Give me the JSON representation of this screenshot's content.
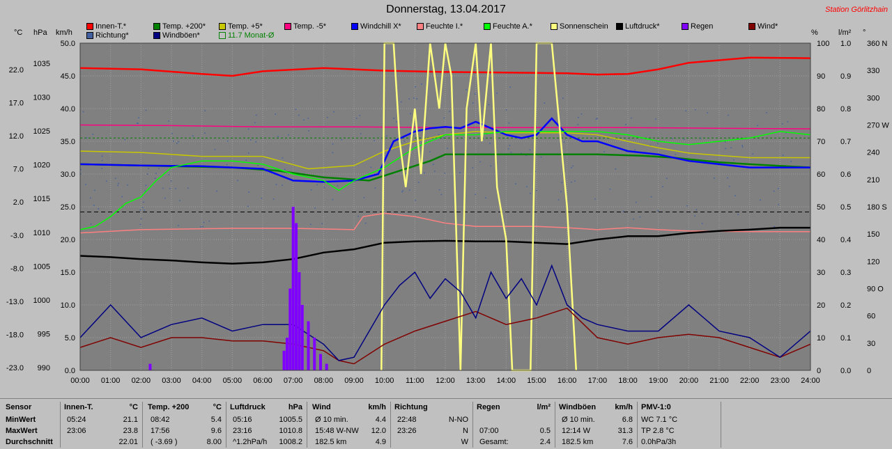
{
  "title": "Donnerstag, 13.04.2017",
  "station": "Station Görlitzhain",
  "legend": [
    {
      "label": "Innen-T.*",
      "color": "#ff0000"
    },
    {
      "label": "Temp. +200*",
      "color": "#008000"
    },
    {
      "label": "Temp. +5*",
      "color": "#c8c800"
    },
    {
      "label": "Temp. -5*",
      "color": "#ff0080"
    },
    {
      "label": "Windchill X*",
      "color": "#0000ff"
    },
    {
      "label": "Feuchte I.*",
      "color": "#ff8080"
    },
    {
      "label": "Feuchte A.*",
      "color": "#00ff00"
    },
    {
      "label": "Sonnenschein",
      "color": "#ffff80"
    },
    {
      "label": "Luftdruck*",
      "color": "#000000"
    },
    {
      "label": "Regen",
      "color": "#8000ff"
    },
    {
      "label": "Wind*",
      "color": "#800000"
    },
    {
      "label": "Richtung*",
      "color": "#4060a0"
    },
    {
      "label": "Windböen*",
      "color": "#000080"
    },
    {
      "label": "11.7 Monat-Ø",
      "color": "#008000"
    }
  ],
  "units_left": [
    "°C",
    "hPa",
    "km/h"
  ],
  "units_right": [
    "%",
    "l/m²",
    "°"
  ],
  "axes": {
    "celsius": [
      "22.0",
      "17.0",
      "12.0",
      "7.0",
      "2.0",
      "-3.0",
      "-8.0",
      "-13.0",
      "-18.0",
      "-23.0"
    ],
    "hpa": [
      "1035",
      "1030",
      "1025",
      "1020",
      "1015",
      "1010",
      "1005",
      "1000",
      "995",
      "990"
    ],
    "kmh": [
      "50.0",
      "45.0",
      "40.0",
      "35.0",
      "30.0",
      "25.0",
      "20.0",
      "15.0",
      "10.0",
      "5.0",
      "0.0"
    ],
    "percent": [
      "100",
      "90",
      "80",
      "70",
      "60",
      "50",
      "40",
      "30",
      "20",
      "10",
      "0"
    ],
    "rain": [
      "1.0",
      "0.9",
      "0.8",
      "0.7",
      "0.6",
      "0.5",
      "0.4",
      "0.3",
      "0.2",
      "0.1",
      "0.0"
    ],
    "degree": [
      "360 N",
      "330",
      "300",
      "270 W",
      "240",
      "210",
      "180 S",
      "150",
      "120",
      "90 O",
      "60",
      "30",
      "0"
    ],
    "time": [
      "00:00",
      "01:00",
      "02:00",
      "03:00",
      "04:00",
      "05:00",
      "06:00",
      "07:00",
      "08:00",
      "09:00",
      "10:00",
      "11:00",
      "12:00",
      "13:00",
      "14:00",
      "15:00",
      "16:00",
      "17:00",
      "18:00",
      "19:00",
      "20:00",
      "21:00",
      "22:00",
      "23:00",
      "24:00"
    ]
  },
  "chart_data": {
    "type": "line",
    "title": "Donnerstag, 13.04.2017",
    "x_unit": "hours",
    "ylim_kmh": [
      0,
      50
    ],
    "series": [
      {
        "name": "Innen-T.*",
        "color": "#ff0000",
        "axis": "kmh",
        "x": [
          0,
          2,
          4,
          5,
          6,
          8,
          10,
          12,
          14,
          16,
          17,
          18,
          19,
          20,
          22,
          24
        ],
        "y": [
          46.2,
          46.0,
          45.3,
          45.0,
          45.7,
          46.2,
          45.8,
          45.6,
          45.5,
          45.4,
          45.2,
          45.3,
          46.0,
          47.0,
          47.8,
          47.7
        ]
      },
      {
        "name": "Temp. +200*",
        "color": "#008000",
        "axis": "kmh",
        "x": [
          0,
          3,
          5,
          6.5,
          8,
          9.5,
          10.5,
          11.5,
          12,
          14,
          16,
          17,
          18.5,
          19.5,
          21,
          22,
          24
        ],
        "y": [
          31.5,
          31.2,
          31.0,
          30.5,
          29.5,
          29.0,
          30.5,
          32.0,
          33.0,
          33.0,
          33.0,
          33.0,
          32.8,
          32.5,
          31.8,
          31.5,
          31.0
        ]
      },
      {
        "name": "Temp. +5*",
        "color": "#c8c800",
        "axis": "kmh",
        "x": [
          0,
          2,
          4,
          6,
          7.5,
          9,
          10,
          11,
          12,
          13,
          14,
          16,
          17,
          18,
          19,
          20,
          22,
          24
        ],
        "y": [
          33.5,
          33.3,
          32.7,
          32.7,
          30.8,
          31.3,
          33.5,
          35.0,
          36.0,
          36.5,
          36.3,
          36.3,
          36.0,
          35.0,
          34.0,
          33.2,
          32.5,
          32.5
        ]
      },
      {
        "name": "Temp. -5*",
        "color": "#ff0080",
        "axis": "kmh",
        "x": [
          0,
          3,
          6,
          9,
          12,
          15,
          18,
          21,
          24
        ],
        "y": [
          37.5,
          37.4,
          37.2,
          37.2,
          37.1,
          37.1,
          37.1,
          37.0,
          36.9
        ]
      },
      {
        "name": "Windchill X*",
        "color": "#0000ff",
        "axis": "kmh",
        "x": [
          0,
          2,
          4,
          6,
          7,
          8,
          9,
          9.8,
          10.3,
          11,
          11.5,
          12,
          12.5,
          13,
          13.5,
          14,
          14.5,
          15,
          15.5,
          16,
          16.5,
          17,
          18,
          19,
          20,
          21,
          22,
          23,
          24
        ],
        "y": [
          31.5,
          31.3,
          31.2,
          30.8,
          29.0,
          28.8,
          29.0,
          30.0,
          35.0,
          36.5,
          37.0,
          37.2,
          37.0,
          38.0,
          37.0,
          36.0,
          35.5,
          36.0,
          38.5,
          36.0,
          35.0,
          35.0,
          33.5,
          33.0,
          32.0,
          31.5,
          31.0,
          31.0,
          31.0
        ]
      },
      {
        "name": "Feuchte I.*",
        "color": "#ff8080",
        "axis": "kmh",
        "x": [
          0,
          2,
          5,
          7,
          9,
          9.3,
          10,
          11,
          12,
          13,
          15,
          16,
          17,
          18,
          19,
          20,
          22,
          24
        ],
        "y": [
          21.0,
          21.5,
          21.7,
          21.7,
          21.5,
          23.5,
          24.0,
          23.5,
          22.5,
          22.0,
          22.0,
          21.8,
          21.5,
          21.8,
          21.5,
          21.3,
          21.2,
          21.2
        ]
      },
      {
        "name": "Feuchte A.*",
        "color": "#00ff00",
        "axis": "kmh",
        "x": [
          0,
          0.5,
          1,
          1.5,
          2,
          2.5,
          3,
          4,
          5,
          6,
          7,
          8,
          8.5,
          9,
          10,
          11,
          12,
          13,
          14,
          15,
          16,
          17,
          18,
          19,
          20,
          21,
          22,
          23,
          24
        ],
        "y": [
          21.5,
          22,
          23.5,
          25.5,
          26.5,
          29,
          31,
          32,
          32,
          31.5,
          30.0,
          29.0,
          27.5,
          29.0,
          31.0,
          34.0,
          36.0,
          36.0,
          36.5,
          36.5,
          36.5,
          36.5,
          36.0,
          35.0,
          34.5,
          35.0,
          35.5,
          36.5,
          36.0
        ]
      },
      {
        "name": "Luftdruck*",
        "color": "#000000",
        "axis": "kmh",
        "x": [
          0,
          1,
          2,
          3,
          4,
          5,
          6,
          7,
          8,
          9,
          10,
          11,
          12,
          13,
          14,
          15,
          16,
          17,
          18,
          19,
          20,
          21,
          22,
          23,
          24
        ],
        "y": [
          17.5,
          17.3,
          17.0,
          16.8,
          16.5,
          16.3,
          16.5,
          17.0,
          18.0,
          18.5,
          19.5,
          19.7,
          19.8,
          19.7,
          19.7,
          19.5,
          19.3,
          20.0,
          20.5,
          20.5,
          21.0,
          21.3,
          21.5,
          21.8,
          21.8
        ]
      },
      {
        "name": "Sonnenschein",
        "color": "#ffff80",
        "axis": "kmh",
        "x": [
          9.9,
          10,
          10.3,
          10.5,
          10.7,
          11,
          11.2,
          11.5,
          11.8,
          12,
          12.2,
          12.4,
          12.5,
          12.7,
          13,
          13.2,
          13.5,
          13.7,
          14,
          14.2,
          14.5,
          14.8,
          15,
          15.5,
          15.8,
          16,
          16.3
        ],
        "y": [
          0,
          50,
          50,
          35,
          28,
          40,
          30,
          50,
          40,
          50,
          45,
          15,
          0,
          40,
          50,
          35,
          50,
          28,
          20,
          0,
          0,
          0,
          50,
          50,
          35,
          25,
          0
        ]
      },
      {
        "name": "Wind*",
        "color": "#800000",
        "axis": "kmh",
        "x": [
          0,
          1,
          2,
          3,
          4,
          5,
          6,
          7,
          8,
          8.5,
          9,
          10,
          11,
          12,
          13,
          14,
          15,
          16,
          17,
          18,
          19,
          20,
          21,
          22,
          23,
          24
        ],
        "y": [
          3.5,
          5,
          3.5,
          5,
          5,
          4.5,
          4.5,
          4,
          3,
          1.5,
          1,
          4,
          6,
          7.5,
          9,
          7,
          8,
          9.5,
          5,
          4,
          5,
          5.5,
          5,
          3.5,
          2,
          4
        ]
      },
      {
        "name": "Windböen*",
        "color": "#000080",
        "axis": "kmh",
        "x": [
          0,
          1,
          2,
          3,
          4,
          5,
          6,
          7,
          8,
          8.5,
          9,
          10,
          10.5,
          11,
          11.5,
          12,
          12.5,
          13,
          13.5,
          14,
          14.5,
          15,
          15.5,
          16,
          16.5,
          17,
          18,
          19,
          20,
          21,
          22,
          23,
          24
        ],
        "y": [
          5,
          10,
          5,
          7,
          8,
          6,
          7,
          7,
          4,
          1.5,
          2,
          10,
          13,
          15,
          11,
          14,
          12,
          8,
          15,
          11,
          14,
          10,
          16,
          10,
          8,
          7,
          6,
          6,
          10,
          6,
          5,
          2,
          6
        ]
      },
      {
        "name": "Regen",
        "color": "#8000ff",
        "axis": "rain",
        "x": [
          2.3,
          6.7,
          6.8,
          6.9,
          7.0,
          7.1,
          7.2,
          7.3,
          7.5,
          7.7,
          7.9,
          8.1
        ],
        "y": [
          0.02,
          0.06,
          0.1,
          0.25,
          0.5,
          0.45,
          0.3,
          0.2,
          0.15,
          0.1,
          0.05,
          0.02
        ]
      }
    ]
  },
  "stats": {
    "col1": {
      "header": "Sensor",
      "rows": [
        "MinWert",
        "MaxWert",
        "Durchschnitt"
      ]
    },
    "col2": {
      "header": "Innen-T.",
      "unit": "°C",
      "rows": [
        [
          "05:24",
          "21.1"
        ],
        [
          "23:06",
          "23.8"
        ],
        [
          "",
          "22.01"
        ]
      ]
    },
    "col3": {
      "header": "Temp. +200",
      "unit": "°C",
      "rows": [
        [
          "08:42",
          "5.4"
        ],
        [
          "17:56",
          "9.6"
        ],
        [
          "( -3.69 )",
          "8.00"
        ]
      ]
    },
    "col4": {
      "header": "Luftdruck",
      "unit": "hPa",
      "rows": [
        [
          "05:16",
          "1005.5"
        ],
        [
          "23:16",
          "1010.8"
        ],
        [
          "^1.2hPa/h",
          "1008.2"
        ]
      ]
    },
    "col5": {
      "header": "Wind",
      "unit": "km/h",
      "rows": [
        [
          "Ø 10 min.",
          "4.4"
        ],
        [
          "15:48   W-NW",
          "12.0"
        ],
        [
          "182.5 km",
          "4.9"
        ]
      ]
    },
    "col6": {
      "header": "Richtung",
      "rows": [
        [
          "22:48",
          "N-NO"
        ],
        [
          "23:26",
          "N"
        ],
        [
          "",
          "W"
        ]
      ]
    },
    "col7": {
      "header": "Regen",
      "unit": "l/m²",
      "rows": [
        [
          "",
          ""
        ],
        [
          "07:00",
          "0.5"
        ],
        [
          "Gesamt:",
          "2.4"
        ]
      ]
    },
    "col8": {
      "header": "Windböen",
      "unit": "km/h",
      "rows": [
        [
          "Ø 10 min.",
          "6.8"
        ],
        [
          "12:14   W",
          "31.3"
        ],
        [
          "182.5 km",
          "7.6"
        ]
      ]
    },
    "col9": {
      "header": "PMV-1:0",
      "rows": [
        "WC 7.1 °C",
        "TP 2.8 °C",
        "0.0hPa/3h"
      ]
    }
  }
}
